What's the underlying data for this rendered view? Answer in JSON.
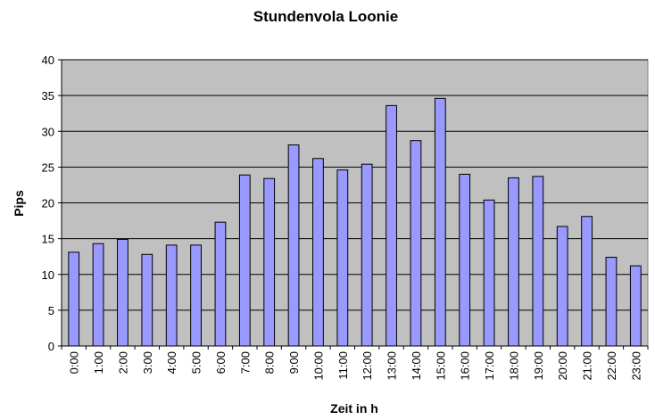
{
  "chart_data": {
    "type": "bar",
    "title": "Stundenvola Loonie",
    "xlabel": "Zeit in h",
    "ylabel": "Pips",
    "ylim": [
      0,
      40
    ],
    "yticks": [
      0,
      5,
      10,
      15,
      20,
      25,
      30,
      35,
      40
    ],
    "grid": true,
    "legend": "none",
    "categories": [
      "0:00",
      "1:00",
      "2:00",
      "3:00",
      "4:00",
      "5:00",
      "6:00",
      "7:00",
      "8:00",
      "9:00",
      "10:00",
      "11:00",
      "12:00",
      "13:00",
      "14:00",
      "15:00",
      "16:00",
      "17:00",
      "18:00",
      "19:00",
      "20:00",
      "21:00",
      "22:00",
      "23:00"
    ],
    "values": [
      13.1,
      14.3,
      14.9,
      12.8,
      14.1,
      14.1,
      17.3,
      23.9,
      23.4,
      28.1,
      26.2,
      24.6,
      25.4,
      33.6,
      28.7,
      34.6,
      24.0,
      20.4,
      23.5,
      23.7,
      16.7,
      18.1,
      12.4,
      11.2
    ],
    "colors": {
      "bar": "#9999ff",
      "plot_background": "#c0c0c0"
    }
  }
}
